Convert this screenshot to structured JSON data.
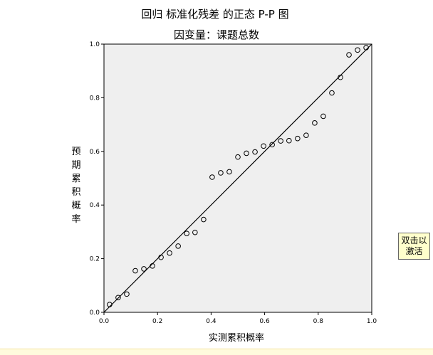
{
  "chart_data": {
    "type": "scatter",
    "title": "回归 标准化残差 的正态 P-P 图",
    "subtitle": "因变量：课题总数",
    "xlabel": "实测累积概率",
    "ylabel": "预期累积概率",
    "xlim": [
      0,
      1
    ],
    "ylim": [
      0,
      1
    ],
    "x_ticks": [
      "0.0",
      "0.2",
      "0.4",
      "0.6",
      "0.8",
      "1.0"
    ],
    "y_ticks": [
      "0.0",
      "0.2",
      "0.4",
      "0.6",
      "0.8",
      "1.0"
    ],
    "grid": false,
    "reference_line": [
      [
        0,
        0
      ],
      [
        1,
        1
      ]
    ],
    "points": [
      [
        0.021,
        0.029
      ],
      [
        0.053,
        0.055
      ],
      [
        0.085,
        0.068
      ],
      [
        0.117,
        0.155
      ],
      [
        0.149,
        0.162
      ],
      [
        0.181,
        0.173
      ],
      [
        0.213,
        0.205
      ],
      [
        0.245,
        0.221
      ],
      [
        0.277,
        0.247
      ],
      [
        0.309,
        0.294
      ],
      [
        0.34,
        0.298
      ],
      [
        0.372,
        0.346
      ],
      [
        0.404,
        0.504
      ],
      [
        0.436,
        0.52
      ],
      [
        0.468,
        0.524
      ],
      [
        0.5,
        0.579
      ],
      [
        0.532,
        0.593
      ],
      [
        0.564,
        0.598
      ],
      [
        0.596,
        0.62
      ],
      [
        0.628,
        0.625
      ],
      [
        0.66,
        0.639
      ],
      [
        0.691,
        0.64
      ],
      [
        0.723,
        0.648
      ],
      [
        0.755,
        0.66
      ],
      [
        0.787,
        0.706
      ],
      [
        0.819,
        0.731
      ],
      [
        0.851,
        0.818
      ],
      [
        0.883,
        0.876
      ],
      [
        0.915,
        0.96
      ],
      [
        0.947,
        0.978
      ],
      [
        0.979,
        0.987
      ]
    ],
    "colors": {
      "plot_background": "#efefef",
      "marker": "#000000",
      "line": "#000000"
    }
  },
  "badge": {
    "line1": "双击以",
    "line2": "激活"
  }
}
